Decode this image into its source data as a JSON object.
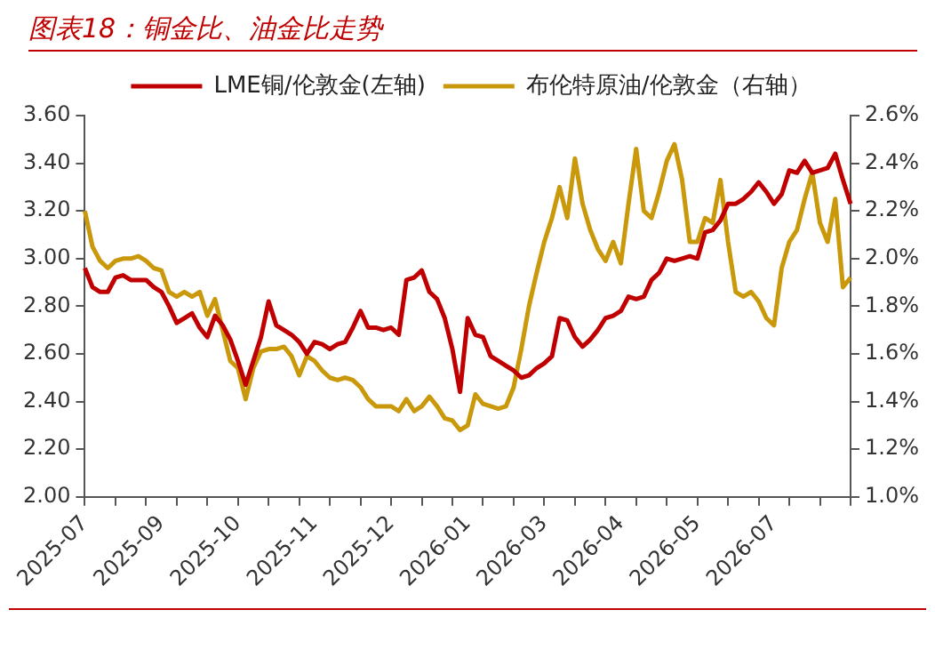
{
  "chart_data": {
    "type": "line",
    "title": "图表18：铜金比、油金比走势",
    "legend": "top",
    "marker": "none",
    "line_style": "solid",
    "categories": [
      "2025-07",
      null,
      null,
      null,
      null,
      null,
      null,
      null,
      null,
      null,
      "2025-09",
      null,
      null,
      null,
      null,
      null,
      null,
      null,
      null,
      null,
      "2025-10",
      null,
      null,
      null,
      null,
      null,
      null,
      null,
      null,
      null,
      "2025-11",
      null,
      null,
      null,
      null,
      null,
      null,
      null,
      null,
      null,
      "2025-12",
      null,
      null,
      null,
      null,
      null,
      null,
      null,
      null,
      null,
      "2026-01",
      null,
      null,
      null,
      null,
      null,
      null,
      null,
      null,
      null,
      "2026-03",
      null,
      null,
      null,
      null,
      null,
      null,
      null,
      null,
      null,
      "2026-04",
      null,
      null,
      null,
      null,
      null,
      null,
      null,
      null,
      null,
      "2026-05",
      null,
      null,
      null,
      null,
      null,
      null,
      null,
      null,
      null,
      "2026-07",
      null,
      null,
      null,
      null,
      null,
      null,
      null,
      null,
      null,
      null
    ],
    "ylim": [
      2.0,
      3.6
    ],
    "yticks": [
      {
        "value": 2.0,
        "label": "2.00"
      },
      {
        "value": 2.2,
        "label": "2.20"
      },
      {
        "value": 2.4,
        "label": "2.40"
      },
      {
        "value": 2.6,
        "label": "2.60"
      },
      {
        "value": 2.8,
        "label": "2.80"
      },
      {
        "value": 3.0,
        "label": "3.00"
      },
      {
        "value": 3.2,
        "label": "3.20"
      },
      {
        "value": 3.4,
        "label": "3.40"
      },
      {
        "value": 3.6,
        "label": "3.60"
      }
    ],
    "y2lim": [
      1.0,
      2.6
    ],
    "y2ticks": [
      {
        "value": 1.0,
        "label": "1.0%"
      },
      {
        "value": 1.2,
        "label": "1.2%"
      },
      {
        "value": 1.4,
        "label": "1.4%"
      },
      {
        "value": 1.6,
        "label": "1.6%"
      },
      {
        "value": 1.8,
        "label": "1.8%"
      },
      {
        "value": 2.0,
        "label": "2.0%"
      },
      {
        "value": 2.2,
        "label": "2.2%"
      },
      {
        "value": 2.4,
        "label": "2.4%"
      },
      {
        "value": 2.6,
        "label": "2.6%"
      }
    ],
    "series": [
      {
        "name": "LME铜/伦敦金(左轴)",
        "color": "#c00000",
        "axis": "y",
        "values": [
          2.96,
          2.88,
          2.86,
          2.86,
          2.92,
          2.93,
          2.91,
          2.91,
          2.91,
          2.88,
          2.86,
          2.8,
          2.73,
          2.75,
          2.77,
          2.71,
          2.67,
          2.76,
          2.72,
          2.66,
          2.57,
          2.47,
          2.57,
          2.67,
          2.82,
          2.72,
          2.7,
          2.68,
          2.65,
          2.6,
          2.65,
          2.64,
          2.62,
          2.64,
          2.65,
          2.71,
          2.78,
          2.71,
          2.71,
          2.7,
          2.71,
          2.68,
          2.91,
          2.92,
          2.95,
          2.86,
          2.83,
          2.75,
          2.62,
          2.44,
          2.75,
          2.68,
          2.67,
          2.59,
          2.57,
          2.55,
          2.53,
          2.5,
          2.51,
          2.54,
          2.56,
          2.59,
          2.75,
          2.74,
          2.67,
          2.63,
          2.66,
          2.7,
          2.75,
          2.76,
          2.78,
          2.84,
          2.83,
          2.84,
          2.91,
          2.94,
          3.0,
          2.99,
          3.0,
          3.01,
          3.0,
          3.11,
          3.12,
          3.16,
          3.23,
          3.23,
          3.25,
          3.28,
          3.32,
          3.28,
          3.23,
          3.27,
          3.37,
          3.36,
          3.41,
          3.36,
          3.37,
          3.38,
          3.44,
          3.33,
          3.23
        ]
      },
      {
        "name": "布伦特原油/伦敦金（右轴）",
        "color": "#c9980b",
        "axis": "y2",
        "values": [
          2.2,
          2.05,
          1.99,
          1.96,
          1.99,
          2.0,
          2.0,
          2.01,
          1.99,
          1.96,
          1.95,
          1.86,
          1.84,
          1.86,
          1.84,
          1.86,
          1.76,
          1.83,
          1.7,
          1.57,
          1.54,
          1.41,
          1.54,
          1.61,
          1.62,
          1.62,
          1.63,
          1.59,
          1.51,
          1.59,
          1.57,
          1.53,
          1.5,
          1.49,
          1.5,
          1.49,
          1.46,
          1.41,
          1.38,
          1.38,
          1.38,
          1.36,
          1.41,
          1.36,
          1.38,
          1.42,
          1.38,
          1.33,
          1.32,
          1.28,
          1.3,
          1.43,
          1.39,
          1.38,
          1.37,
          1.38,
          1.46,
          1.62,
          1.8,
          1.94,
          2.07,
          2.17,
          2.3,
          2.17,
          2.42,
          2.23,
          2.12,
          2.04,
          1.99,
          2.07,
          1.98,
          2.23,
          2.46,
          2.2,
          2.17,
          2.28,
          2.41,
          2.48,
          2.33,
          2.07,
          2.07,
          2.17,
          2.15,
          2.33,
          2.07,
          1.86,
          1.84,
          1.86,
          1.82,
          1.75,
          1.72,
          1.96,
          2.07,
          2.12,
          2.25,
          2.36,
          2.15,
          2.07,
          2.25,
          1.88,
          1.92
        ]
      }
    ]
  }
}
